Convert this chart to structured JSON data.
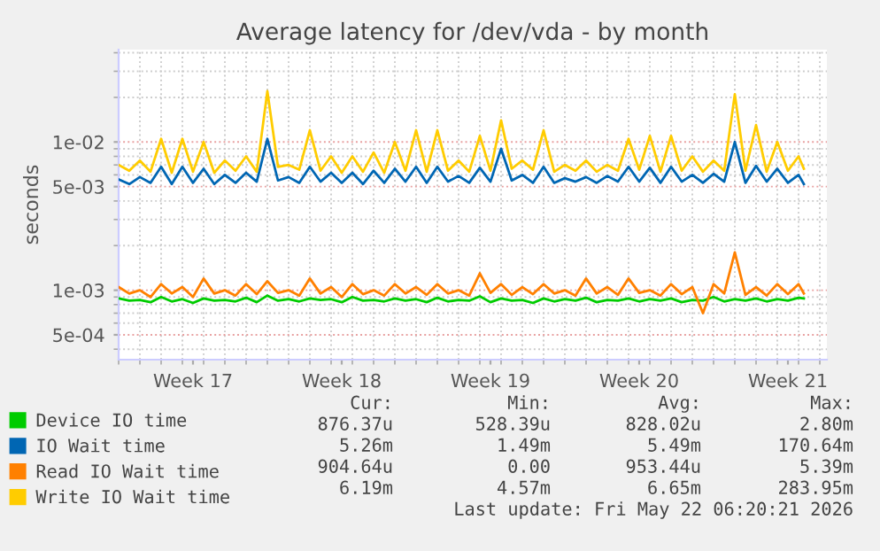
{
  "chart_data": {
    "type": "line",
    "title": "Average latency for /dev/vda - by month",
    "ylabel": "seconds",
    "log": "y",
    "grid": true,
    "legend": "bottom",
    "marker": "none",
    "line_style": "solid",
    "ylim": [
      0.00034,
      0.042
    ],
    "yticks": [
      {
        "value": 0.0005,
        "label": "5e-04"
      },
      {
        "value": 0.001,
        "label": "1e-03"
      },
      {
        "value": 0.005,
        "label": "5e-03"
      },
      {
        "value": 0.01,
        "label": "1e-02"
      }
    ],
    "xlim": [
      "2026-04-20T00:00",
      "2026-05-23T08:00"
    ],
    "xticks": [
      {
        "value": "2026-04-23T12:00",
        "label": "Week 17"
      },
      {
        "value": "2026-04-30T12:00",
        "label": "Week 18"
      },
      {
        "value": "2026-05-07T12:00",
        "label": "Week 19"
      },
      {
        "value": "2026-05-14T12:00",
        "label": "Week 20"
      },
      {
        "value": "2026-05-21T12:00",
        "label": "Week 21"
      }
    ],
    "x": [
      "2026-04-20T00:00",
      "2026-04-20T12:00",
      "2026-04-21T00:00",
      "2026-04-21T12:00",
      "2026-04-22T00:00",
      "2026-04-22T12:00",
      "2026-04-23T00:00",
      "2026-04-23T12:00",
      "2026-04-24T00:00",
      "2026-04-24T12:00",
      "2026-04-25T00:00",
      "2026-04-25T12:00",
      "2026-04-26T00:00",
      "2026-04-26T12:00",
      "2026-04-27T00:00",
      "2026-04-27T12:00",
      "2026-04-28T00:00",
      "2026-04-28T12:00",
      "2026-04-29T00:00",
      "2026-04-29T12:00",
      "2026-04-30T00:00",
      "2026-04-30T12:00",
      "2026-05-01T00:00",
      "2026-05-01T12:00",
      "2026-05-02T00:00",
      "2026-05-02T12:00",
      "2026-05-03T00:00",
      "2026-05-03T12:00",
      "2026-05-04T00:00",
      "2026-05-04T12:00",
      "2026-05-05T00:00",
      "2026-05-05T12:00",
      "2026-05-06T00:00",
      "2026-05-06T12:00",
      "2026-05-07T00:00",
      "2026-05-07T12:00",
      "2026-05-08T00:00",
      "2026-05-08T12:00",
      "2026-05-09T00:00",
      "2026-05-09T12:00",
      "2026-05-10T00:00",
      "2026-05-10T12:00",
      "2026-05-11T00:00",
      "2026-05-11T12:00",
      "2026-05-12T00:00",
      "2026-05-12T12:00",
      "2026-05-13T00:00",
      "2026-05-13T12:00",
      "2026-05-14T00:00",
      "2026-05-14T12:00",
      "2026-05-15T00:00",
      "2026-05-15T12:00",
      "2026-05-16T00:00",
      "2026-05-16T12:00",
      "2026-05-17T00:00",
      "2026-05-17T12:00",
      "2026-05-18T00:00",
      "2026-05-18T12:00",
      "2026-05-19T00:00",
      "2026-05-19T12:00",
      "2026-05-20T00:00",
      "2026-05-20T12:00",
      "2026-05-21T00:00",
      "2026-05-21T12:00",
      "2026-05-22T00:00",
      "2026-05-22T06:00"
    ],
    "series": [
      {
        "name": "Device IO time",
        "color": "#00cc00",
        "values": [
          0.00088,
          0.00085,
          0.00086,
          0.00083,
          0.0009,
          0.00084,
          0.00087,
          0.00082,
          0.00088,
          0.00085,
          0.00086,
          0.00084,
          0.00089,
          0.00083,
          0.00092,
          0.00085,
          0.00087,
          0.00084,
          0.00088,
          0.00086,
          0.00087,
          0.00083,
          0.0009,
          0.00085,
          0.00086,
          0.00084,
          0.00088,
          0.00085,
          0.00087,
          0.00083,
          0.00089,
          0.00084,
          0.00086,
          0.00085,
          0.00091,
          0.00083,
          0.00088,
          0.00085,
          0.00086,
          0.00082,
          0.00088,
          0.00084,
          0.00087,
          0.00085,
          0.00089,
          0.00083,
          0.00086,
          0.00085,
          0.00088,
          0.00084,
          0.00087,
          0.00085,
          0.00088,
          0.00083,
          0.00086,
          0.00085,
          0.0009,
          0.00084,
          0.00087,
          0.00085,
          0.00088,
          0.00084,
          0.00087,
          0.00085,
          0.00089,
          0.00088
        ]
      },
      {
        "name": "IO Wait time",
        "color": "#0066b3",
        "values": [
          0.0056,
          0.0052,
          0.0058,
          0.0053,
          0.0068,
          0.0052,
          0.0068,
          0.0053,
          0.0066,
          0.0052,
          0.006,
          0.0053,
          0.0062,
          0.0054,
          0.0105,
          0.0055,
          0.0058,
          0.0053,
          0.0068,
          0.0054,
          0.0062,
          0.0053,
          0.0062,
          0.0052,
          0.0064,
          0.0053,
          0.0066,
          0.0054,
          0.0068,
          0.0053,
          0.0068,
          0.0054,
          0.0059,
          0.0053,
          0.0067,
          0.0054,
          0.009,
          0.0055,
          0.006,
          0.0053,
          0.0068,
          0.0053,
          0.0057,
          0.0054,
          0.0058,
          0.0053,
          0.0059,
          0.0054,
          0.0068,
          0.0054,
          0.0067,
          0.0053,
          0.0068,
          0.0054,
          0.006,
          0.0053,
          0.0061,
          0.0054,
          0.01,
          0.0053,
          0.0069,
          0.0054,
          0.0066,
          0.0053,
          0.006,
          0.0052
        ]
      },
      {
        "name": "Read IO Wait time",
        "color": "#ff8000",
        "values": [
          0.00105,
          0.00095,
          0.001,
          0.0009,
          0.0011,
          0.00095,
          0.00105,
          0.0009,
          0.0012,
          0.00095,
          0.001,
          0.00092,
          0.0011,
          0.00094,
          0.00115,
          0.00096,
          0.001,
          0.00092,
          0.0012,
          0.00095,
          0.00105,
          0.0009,
          0.0011,
          0.00094,
          0.001,
          0.00092,
          0.0011,
          0.00095,
          0.00105,
          0.00093,
          0.0011,
          0.00095,
          0.001,
          0.00092,
          0.0013,
          0.00096,
          0.0011,
          0.00093,
          0.00105,
          0.00094,
          0.0011,
          0.00095,
          0.001,
          0.00092,
          0.0012,
          0.00095,
          0.00105,
          0.00093,
          0.0012,
          0.00096,
          0.001,
          0.00092,
          0.0011,
          0.00094,
          0.00105,
          0.0007,
          0.0011,
          0.00095,
          0.0018,
          0.00093,
          0.00105,
          0.00092,
          0.0011,
          0.00094,
          0.0011,
          0.00095
        ]
      },
      {
        "name": "Write IO Wait time",
        "color": "#ffcc00",
        "values": [
          0.007,
          0.0064,
          0.0075,
          0.0063,
          0.0105,
          0.0062,
          0.0105,
          0.0063,
          0.01,
          0.0062,
          0.0075,
          0.0064,
          0.008,
          0.0063,
          0.022,
          0.0068,
          0.007,
          0.0065,
          0.012,
          0.0064,
          0.008,
          0.0062,
          0.008,
          0.0063,
          0.0085,
          0.0062,
          0.01,
          0.0064,
          0.012,
          0.0063,
          0.012,
          0.0064,
          0.0075,
          0.0063,
          0.011,
          0.0064,
          0.014,
          0.0066,
          0.0075,
          0.0065,
          0.012,
          0.0063,
          0.007,
          0.0064,
          0.0075,
          0.0063,
          0.007,
          0.0064,
          0.0105,
          0.0065,
          0.011,
          0.0063,
          0.011,
          0.0064,
          0.008,
          0.0063,
          0.0075,
          0.0064,
          0.021,
          0.0064,
          0.013,
          0.0063,
          0.01,
          0.0064,
          0.008,
          0.0066
        ]
      }
    ],
    "annotations": [
      "Cur:",
      "Min:",
      "Avg:",
      "Max:",
      "876.37u",
      "528.39u",
      "828.02u",
      "2.80m",
      "5.26m",
      "1.49m",
      "5.49m",
      "170.64m",
      "904.64u",
      "0.00",
      "953.44u",
      "5.39m",
      "6.19m",
      "4.57m",
      "6.65m",
      "283.95m",
      "Last update: Fri May 22 06:20:21 2026"
    ]
  }
}
